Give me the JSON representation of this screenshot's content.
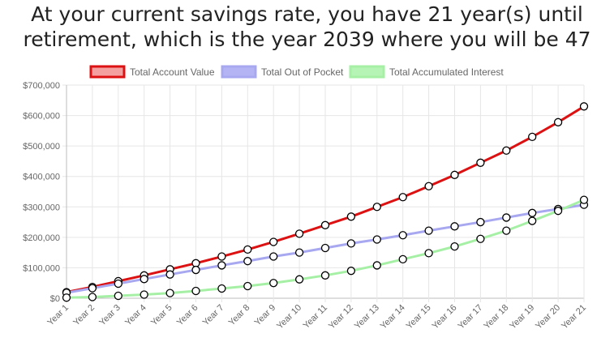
{
  "chart_data": {
    "type": "line",
    "title": [
      "At your current savings rate, you have 21 year(s) until",
      "retirement, which is the year 2039 where you will be 47"
    ],
    "categories": [
      "Year 1",
      "Year 2",
      "Year 3",
      "Year 4",
      "Year 5",
      "Year 6",
      "Year 7",
      "Year 8",
      "Year 9",
      "Year 10",
      "Year 11",
      "Year 12",
      "Year 13",
      "Year 14",
      "Year 15",
      "Year 16",
      "Year 17",
      "Year 18",
      "Year 19",
      "Year 20",
      "Year 21"
    ],
    "ylim": [
      0,
      700000
    ],
    "yticks": [
      0,
      100000,
      200000,
      300000,
      400000,
      500000,
      600000,
      700000
    ],
    "ytick_labels": [
      "$0",
      "$100,000",
      "$200,000",
      "$300,000",
      "$400,000",
      "$500,000",
      "$600,000",
      "$700,000"
    ],
    "grid": true,
    "legend_position": "top",
    "series": [
      {
        "name": "Total Account Value",
        "color": "#dd1111",
        "fill": "#f4a0a0",
        "values": [
          20000,
          37000,
          56000,
          75000,
          95000,
          115000,
          137000,
          160000,
          185000,
          212000,
          240000,
          268000,
          300000,
          332000,
          368000,
          405000,
          445000,
          485000,
          530000,
          578000,
          630000
        ]
      },
      {
        "name": "Total Out of Pocket",
        "color": "#a8a8f0",
        "fill": "#b4b4f4",
        "values": [
          18000,
          33000,
          48000,
          63000,
          78000,
          93000,
          108000,
          122000,
          137000,
          150000,
          165000,
          180000,
          193000,
          207000,
          222000,
          236000,
          250000,
          265000,
          280000,
          293000,
          307000
        ]
      },
      {
        "name": "Total Accumulated Interest",
        "color": "#a6f0a6",
        "fill": "#b6f4b6",
        "values": [
          2000,
          4000,
          8000,
          12000,
          17000,
          24000,
          32000,
          40000,
          50000,
          62000,
          75000,
          90000,
          108000,
          128000,
          148000,
          170000,
          195000,
          222000,
          254000,
          287000,
          323000
        ]
      }
    ]
  }
}
